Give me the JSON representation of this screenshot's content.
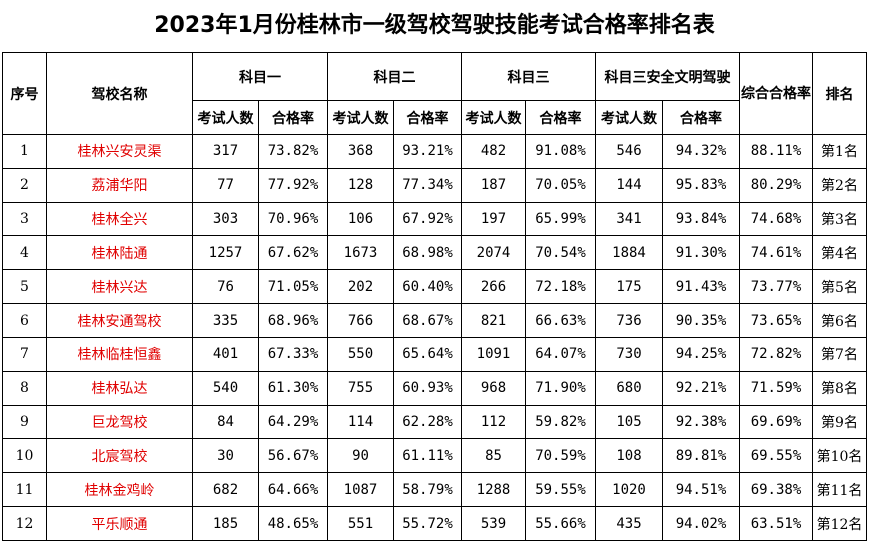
{
  "title": "2023年1月份桂林市一级驾校驾驶技能考试合格率排名表",
  "headers": {
    "seq": "序号",
    "school": "驾校名称",
    "subject1": "科目一",
    "subject2": "科目二",
    "subject3": "科目三",
    "subject3_safety": "科目三安全文明驾驶",
    "overall": "综合合格率",
    "rank": "排名",
    "examinees": "考试人数",
    "pass_rate": "合格率"
  },
  "rows": [
    {
      "seq": "1",
      "name": "桂林兴安灵渠",
      "s1n": "317",
      "s1r": "73.82%",
      "s2n": "368",
      "s2r": "93.21%",
      "s3n": "482",
      "s3r": "91.08%",
      "s4n": "546",
      "s4r": "94.32%",
      "overall": "88.11%",
      "rank": "第1名"
    },
    {
      "seq": "2",
      "name": "荔浦华阳",
      "s1n": "77",
      "s1r": "77.92%",
      "s2n": "128",
      "s2r": "77.34%",
      "s3n": "187",
      "s3r": "70.05%",
      "s4n": "144",
      "s4r": "95.83%",
      "overall": "80.29%",
      "rank": "第2名"
    },
    {
      "seq": "3",
      "name": "桂林全兴",
      "s1n": "303",
      "s1r": "70.96%",
      "s2n": "106",
      "s2r": "67.92%",
      "s3n": "197",
      "s3r": "65.99%",
      "s4n": "341",
      "s4r": "93.84%",
      "overall": "74.68%",
      "rank": "第3名"
    },
    {
      "seq": "4",
      "name": "桂林陆通",
      "s1n": "1257",
      "s1r": "67.62%",
      "s2n": "1673",
      "s2r": "68.98%",
      "s3n": "2074",
      "s3r": "70.54%",
      "s4n": "1884",
      "s4r": "91.30%",
      "overall": "74.61%",
      "rank": "第4名"
    },
    {
      "seq": "5",
      "name": "桂林兴达",
      "s1n": "76",
      "s1r": "71.05%",
      "s2n": "202",
      "s2r": "60.40%",
      "s3n": "266",
      "s3r": "72.18%",
      "s4n": "175",
      "s4r": "91.43%",
      "overall": "73.77%",
      "rank": "第5名"
    },
    {
      "seq": "6",
      "name": "桂林安通驾校",
      "s1n": "335",
      "s1r": "68.96%",
      "s2n": "766",
      "s2r": "68.67%",
      "s3n": "821",
      "s3r": "66.63%",
      "s4n": "736",
      "s4r": "90.35%",
      "overall": "73.65%",
      "rank": "第6名"
    },
    {
      "seq": "7",
      "name": "桂林临桂恒鑫",
      "s1n": "401",
      "s1r": "67.33%",
      "s2n": "550",
      "s2r": "65.64%",
      "s3n": "1091",
      "s3r": "64.07%",
      "s4n": "730",
      "s4r": "94.25%",
      "overall": "72.82%",
      "rank": "第7名"
    },
    {
      "seq": "8",
      "name": "桂林弘达",
      "s1n": "540",
      "s1r": "61.30%",
      "s2n": "755",
      "s2r": "60.93%",
      "s3n": "968",
      "s3r": "71.90%",
      "s4n": "680",
      "s4r": "92.21%",
      "overall": "71.59%",
      "rank": "第8名"
    },
    {
      "seq": "9",
      "name": "巨龙驾校",
      "s1n": "84",
      "s1r": "64.29%",
      "s2n": "114",
      "s2r": "62.28%",
      "s3n": "112",
      "s3r": "59.82%",
      "s4n": "105",
      "s4r": "92.38%",
      "overall": "69.69%",
      "rank": "第9名"
    },
    {
      "seq": "10",
      "name": "北宸驾校",
      "s1n": "30",
      "s1r": "56.67%",
      "s2n": "90",
      "s2r": "61.11%",
      "s3n": "85",
      "s3r": "70.59%",
      "s4n": "108",
      "s4r": "89.81%",
      "overall": "69.55%",
      "rank": "第10名"
    },
    {
      "seq": "11",
      "name": "桂林金鸡岭",
      "s1n": "682",
      "s1r": "64.66%",
      "s2n": "1087",
      "s2r": "58.79%",
      "s3n": "1288",
      "s3r": "59.55%",
      "s4n": "1020",
      "s4r": "94.51%",
      "overall": "69.38%",
      "rank": "第11名"
    },
    {
      "seq": "12",
      "name": "平乐顺通",
      "s1n": "185",
      "s1r": "48.65%",
      "s2n": "551",
      "s2r": "55.72%",
      "s3n": "539",
      "s3r": "55.66%",
      "s4n": "435",
      "s4r": "94.02%",
      "overall": "63.51%",
      "rank": "第12名"
    }
  ],
  "colors": {
    "school_name": "#e00000",
    "border": "#000000",
    "text": "#000000"
  }
}
